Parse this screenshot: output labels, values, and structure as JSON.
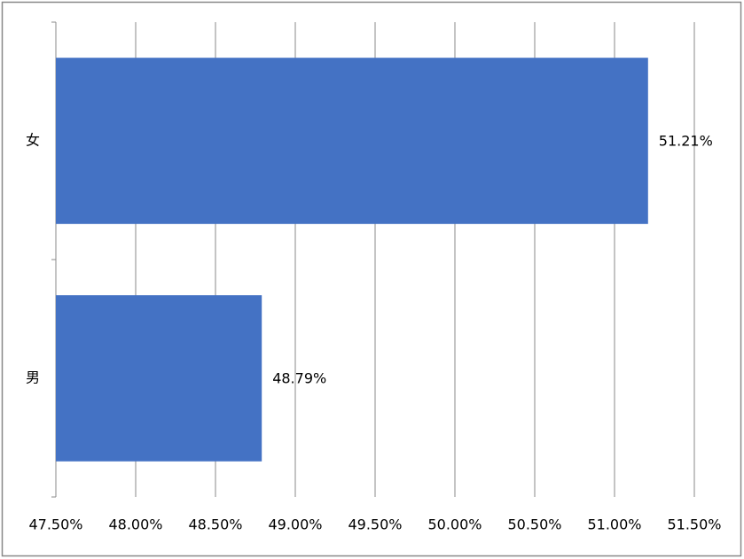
{
  "chart_data": {
    "type": "barh",
    "categories": [
      "女",
      "男"
    ],
    "values": [
      51.21,
      48.79
    ],
    "value_labels": [
      "51.21%",
      "48.79%"
    ],
    "color": "#4472c4",
    "xlim": [
      47.5,
      51.5
    ],
    "xticks": [
      {
        "value": 47.5,
        "label": "47.50%"
      },
      {
        "value": 48,
        "label": "48.00%"
      },
      {
        "value": 48.5,
        "label": "48.50%"
      },
      {
        "value": 49,
        "label": "49.00%"
      },
      {
        "value": 49.5,
        "label": "49.50%"
      },
      {
        "value": 50,
        "label": "50.00%"
      },
      {
        "value": 50.5,
        "label": "50.50%"
      },
      {
        "value": 51,
        "label": "51.00%"
      },
      {
        "value": 51.5,
        "label": "51.50%"
      }
    ],
    "grid": true
  }
}
